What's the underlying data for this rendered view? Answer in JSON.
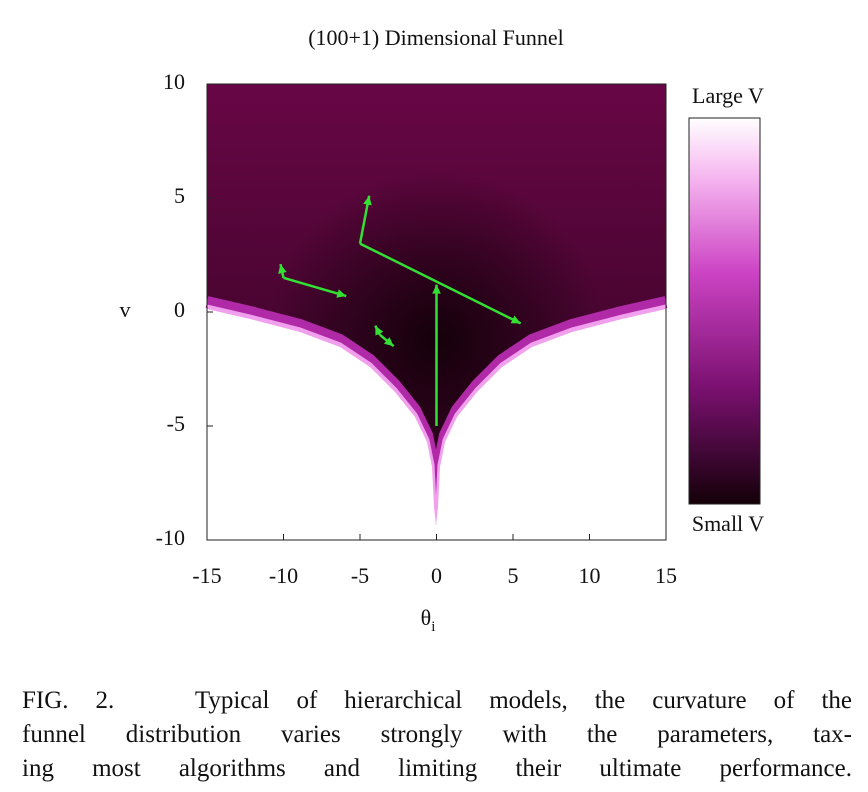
{
  "chart_data": {
    "type": "heatmap",
    "title": "(100+1) Dimensional Funnel",
    "xlabel": "θ",
    "xlabel_subscript": "i",
    "ylabel": "v",
    "xlim": [
      -15,
      15
    ],
    "ylim": [
      -10,
      10
    ],
    "xticks": [
      -15,
      -10,
      -5,
      0,
      5,
      10,
      15
    ],
    "yticks": [
      -10,
      -5,
      0,
      5,
      10
    ],
    "colorbar_top": "Large V",
    "colorbar_bottom": "Small V",
    "arrow_color": "#33e033",
    "arrows": [
      {
        "x": [
          -5,
          -4.4
        ],
        "y": [
          3,
          5.1
        ]
      },
      {
        "x": [
          -5,
          5.5
        ],
        "y": [
          3,
          -0.5
        ]
      },
      {
        "x": [
          -10,
          -10.2
        ],
        "y": [
          1.5,
          2.1
        ]
      },
      {
        "x": [
          -10,
          -5.9
        ],
        "y": [
          1.5,
          0.7
        ]
      },
      {
        "x": [
          -3.7,
          -4
        ],
        "y": [
          -1,
          -0.6
        ]
      },
      {
        "x": [
          -3.7,
          -2.8
        ],
        "y": [
          -1,
          -1.5
        ]
      },
      {
        "x": [
          0,
          0
        ],
        "y": [
          -5,
          1.2
        ]
      }
    ]
  },
  "caption": {
    "lines": [
      "FIG. 2.   Typical of hierarchical models, the curvature of the",
      "funnel distribution varies strongly with the parameters, tax-",
      "ing most algorithms and limiting their ultimate performance."
    ]
  }
}
